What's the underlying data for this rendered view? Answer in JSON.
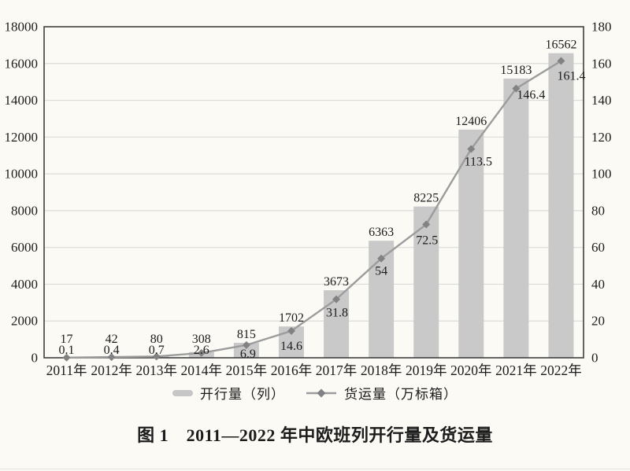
{
  "page": {
    "background": "#fbfaf5"
  },
  "chart_data": {
    "type": "bar",
    "subtype": "bar+line combo, dual y-axes",
    "categories": [
      "2011年",
      "2012年",
      "2013年",
      "2014年",
      "2015年",
      "2016年",
      "2017年",
      "2018年",
      "2019年",
      "2020年",
      "2021年",
      "2022年"
    ],
    "series": [
      {
        "name": "开行量（列）",
        "type": "bar",
        "axis": "left",
        "color": "#c9c9c9",
        "values": [
          17,
          42,
          80,
          308,
          815,
          1702,
          3673,
          6363,
          8225,
          12406,
          15183,
          16562
        ]
      },
      {
        "name": "货运量（万标箱）",
        "type": "line",
        "axis": "right",
        "color": "#9c9c9c",
        "marker": "diamond",
        "marker_color": "#828282",
        "values": [
          0.1,
          0.4,
          0.7,
          2.6,
          6.9,
          14.6,
          31.8,
          54,
          72.5,
          113.5,
          146.4,
          161.4
        ]
      }
    ],
    "left_axis": {
      "min": 0,
      "max": 18000,
      "step": 2000,
      "ticks": [
        0,
        2000,
        4000,
        6000,
        8000,
        10000,
        12000,
        14000,
        16000,
        18000
      ]
    },
    "right_axis": {
      "min": 0,
      "max": 180,
      "step": 20,
      "ticks": [
        0,
        20,
        40,
        60,
        80,
        100,
        120,
        140,
        160,
        180
      ]
    },
    "grid": true,
    "legend_position": "bottom",
    "frame_color": "#3f3f3f",
    "grid_color": "#dddbd8",
    "text_color": "#1c1c1c",
    "title": "图 1　2011—2022 年中欧班列开行量及货运量",
    "xlabel": "",
    "ylabel_left": "",
    "ylabel_right": ""
  },
  "legend": {
    "bar_label": "开行量（列）",
    "line_label": "货运量（万标箱）"
  },
  "caption": {
    "text": "图 1　2011—2022 年中欧班列开行量及货运量"
  }
}
